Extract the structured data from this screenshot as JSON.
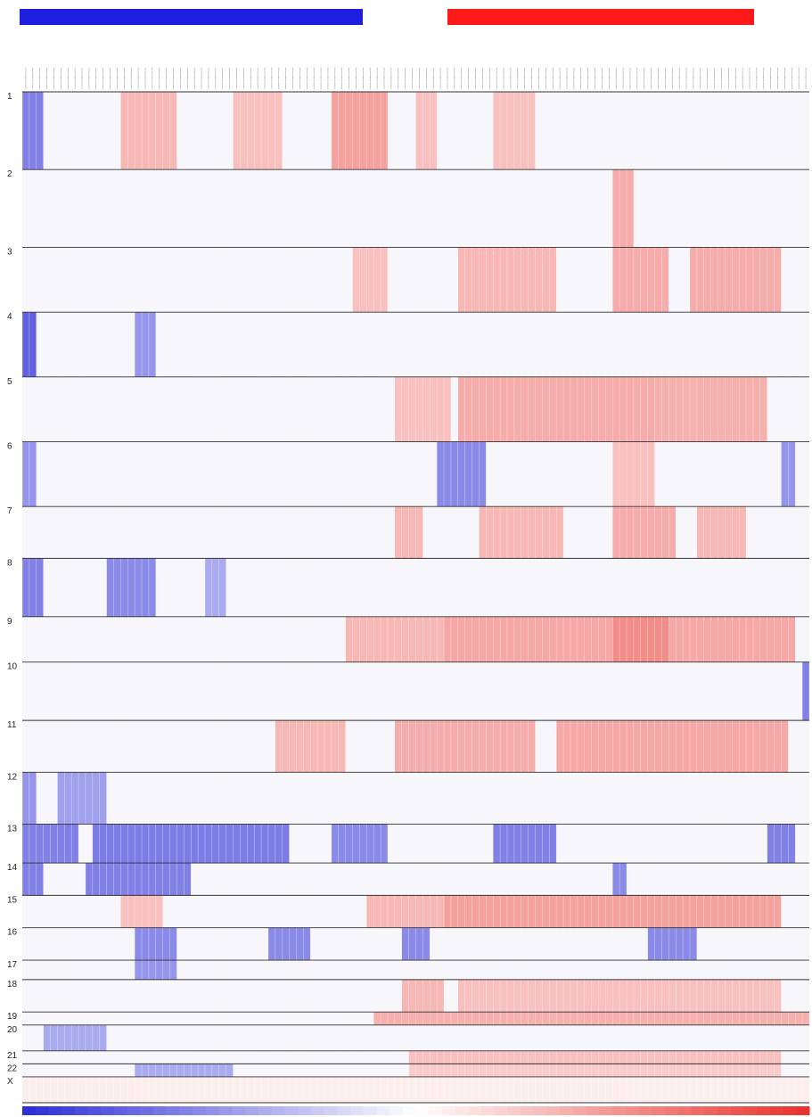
{
  "chart_data": {
    "type": "heatmap",
    "title": "",
    "xlabel": "",
    "ylabel": "",
    "group_bars": [
      {
        "color": "#1f1fe0"
      },
      {
        "color": "#ff1a1a"
      }
    ],
    "colorscale": {
      "low": "#2b2bd6",
      "mid": "#ffffff",
      "high": "#e8302a"
    },
    "value_range": [
      -1,
      1
    ],
    "n_samples": 112,
    "chromosomes": [
      {
        "label": "1",
        "rows": 12
      },
      {
        "label": "2",
        "rows": 12
      },
      {
        "label": "3",
        "rows": 10
      },
      {
        "label": "4",
        "rows": 10
      },
      {
        "label": "5",
        "rows": 10
      },
      {
        "label": "6",
        "rows": 10
      },
      {
        "label": "7",
        "rows": 8
      },
      {
        "label": "8",
        "rows": 9
      },
      {
        "label": "9",
        "rows": 7
      },
      {
        "label": "10",
        "rows": 9
      },
      {
        "label": "11",
        "rows": 8
      },
      {
        "label": "12",
        "rows": 8
      },
      {
        "label": "13",
        "rows": 6
      },
      {
        "label": "14",
        "rows": 5
      },
      {
        "label": "15",
        "rows": 5
      },
      {
        "label": "16",
        "rows": 5
      },
      {
        "label": "17",
        "rows": 3
      },
      {
        "label": "18",
        "rows": 5
      },
      {
        "label": "19",
        "rows": 2
      },
      {
        "label": "20",
        "rows": 4
      },
      {
        "label": "21",
        "rows": 2
      },
      {
        "label": "22",
        "rows": 2
      },
      {
        "label": "X",
        "rows": 4
      }
    ],
    "segments": [
      {
        "chr": "1",
        "start": 0,
        "end": 3,
        "value": -0.6
      },
      {
        "chr": "1",
        "start": 14,
        "end": 22,
        "value": 0.35
      },
      {
        "chr": "1",
        "start": 30,
        "end": 37,
        "value": 0.3
      },
      {
        "chr": "1",
        "start": 44,
        "end": 52,
        "value": 0.45
      },
      {
        "chr": "1",
        "start": 56,
        "end": 59,
        "value": 0.3
      },
      {
        "chr": "1",
        "start": 67,
        "end": 73,
        "value": 0.3
      },
      {
        "chr": "2",
        "start": 84,
        "end": 87,
        "value": 0.4
      },
      {
        "chr": "3",
        "start": 47,
        "end": 52,
        "value": 0.3
      },
      {
        "chr": "3",
        "start": 62,
        "end": 76,
        "value": 0.35
      },
      {
        "chr": "3",
        "start": 84,
        "end": 92,
        "value": 0.4
      },
      {
        "chr": "3",
        "start": 95,
        "end": 108,
        "value": 0.4
      },
      {
        "chr": "4",
        "start": 0,
        "end": 2,
        "value": -0.75
      },
      {
        "chr": "4",
        "start": 16,
        "end": 19,
        "value": -0.5
      },
      {
        "chr": "5",
        "start": 53,
        "end": 61,
        "value": 0.3
      },
      {
        "chr": "5",
        "start": 62,
        "end": 90,
        "value": 0.4
      },
      {
        "chr": "5",
        "start": 90,
        "end": 106,
        "value": 0.38
      },
      {
        "chr": "6",
        "start": 0,
        "end": 2,
        "value": -0.5
      },
      {
        "chr": "6",
        "start": 59,
        "end": 66,
        "value": -0.55
      },
      {
        "chr": "6",
        "start": 84,
        "end": 90,
        "value": 0.3
      },
      {
        "chr": "6",
        "start": 108,
        "end": 110,
        "value": -0.5
      },
      {
        "chr": "7",
        "start": 53,
        "end": 57,
        "value": 0.35
      },
      {
        "chr": "7",
        "start": 65,
        "end": 77,
        "value": 0.35
      },
      {
        "chr": "7",
        "start": 84,
        "end": 93,
        "value": 0.4
      },
      {
        "chr": "7",
        "start": 96,
        "end": 103,
        "value": 0.35
      },
      {
        "chr": "8",
        "start": 0,
        "end": 3,
        "value": -0.6
      },
      {
        "chr": "8",
        "start": 12,
        "end": 19,
        "value": -0.55
      },
      {
        "chr": "8",
        "start": 26,
        "end": 29,
        "value": -0.4
      },
      {
        "chr": "9",
        "start": 46,
        "end": 60,
        "value": 0.35
      },
      {
        "chr": "9",
        "start": 60,
        "end": 110,
        "value": 0.42
      },
      {
        "chr": "9",
        "start": 84,
        "end": 92,
        "value": 0.55
      },
      {
        "chr": "10",
        "start": 111,
        "end": 112,
        "value": -0.6
      },
      {
        "chr": "11",
        "start": 36,
        "end": 46,
        "value": 0.35
      },
      {
        "chr": "11",
        "start": 53,
        "end": 73,
        "value": 0.4
      },
      {
        "chr": "11",
        "start": 76,
        "end": 109,
        "value": 0.42
      },
      {
        "chr": "12",
        "start": 0,
        "end": 2,
        "value": -0.5
      },
      {
        "chr": "12",
        "start": 5,
        "end": 12,
        "value": -0.45
      },
      {
        "chr": "13",
        "start": 0,
        "end": 8,
        "value": -0.6
      },
      {
        "chr": "13",
        "start": 10,
        "end": 38,
        "value": -0.62
      },
      {
        "chr": "13",
        "start": 44,
        "end": 52,
        "value": -0.55
      },
      {
        "chr": "13",
        "start": 67,
        "end": 76,
        "value": -0.6
      },
      {
        "chr": "13",
        "start": 106,
        "end": 110,
        "value": -0.6
      },
      {
        "chr": "14",
        "start": 0,
        "end": 3,
        "value": -0.6
      },
      {
        "chr": "14",
        "start": 9,
        "end": 24,
        "value": -0.6
      },
      {
        "chr": "14",
        "start": 84,
        "end": 86,
        "value": -0.55
      },
      {
        "chr": "15",
        "start": 14,
        "end": 20,
        "value": 0.3
      },
      {
        "chr": "15",
        "start": 49,
        "end": 60,
        "value": 0.35
      },
      {
        "chr": "15",
        "start": 60,
        "end": 108,
        "value": 0.45
      },
      {
        "chr": "16",
        "start": 16,
        "end": 22,
        "value": -0.55
      },
      {
        "chr": "16",
        "start": 35,
        "end": 41,
        "value": -0.55
      },
      {
        "chr": "16",
        "start": 54,
        "end": 58,
        "value": -0.55
      },
      {
        "chr": "16",
        "start": 89,
        "end": 96,
        "value": -0.55
      },
      {
        "chr": "17",
        "start": 16,
        "end": 22,
        "value": -0.5
      },
      {
        "chr": "18",
        "start": 54,
        "end": 60,
        "value": 0.35
      },
      {
        "chr": "18",
        "start": 62,
        "end": 108,
        "value": 0.3
      },
      {
        "chr": "19",
        "start": 50,
        "end": 112,
        "value": 0.38
      },
      {
        "chr": "20",
        "start": 3,
        "end": 12,
        "value": -0.4
      },
      {
        "chr": "21",
        "start": 55,
        "end": 108,
        "value": 0.3
      },
      {
        "chr": "22",
        "start": 16,
        "end": 30,
        "value": -0.4
      },
      {
        "chr": "22",
        "start": 55,
        "end": 108,
        "value": 0.25
      },
      {
        "chr": "X",
        "start": 0,
        "end": 112,
        "value": 0.08
      }
    ]
  }
}
